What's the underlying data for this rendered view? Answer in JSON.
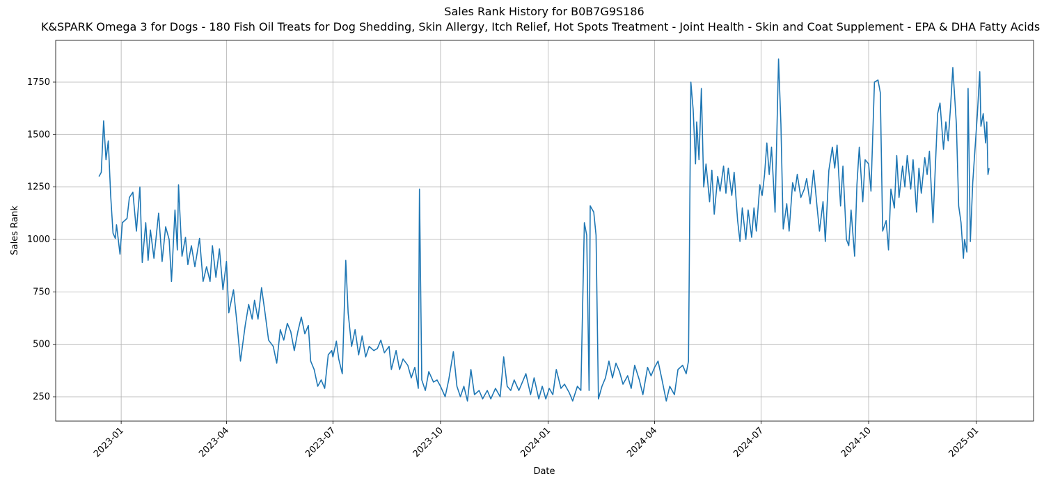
{
  "chart_data": {
    "type": "line",
    "title": "Sales Rank History for B0B7G9S186",
    "subtitle": "K&SPARK Omega 3 for Dogs - 180 Fish Oil Treats for Dog Shedding, Skin Allergy, Itch Relief, Hot Spots Treatment - Joint Health - Skin and Coat Supplement - EPA & DHA Fatty Acids -",
    "x_label": "Date",
    "y_label": "Sales Rank",
    "color": "#1f77b4",
    "grid": true,
    "xlim": [
      "2022-11-06",
      "2025-02-19"
    ],
    "xticks": [
      "2023-01",
      "2023-04",
      "2023-07",
      "2023-10",
      "2024-01",
      "2024-04",
      "2024-07",
      "2024-10",
      "2025-01"
    ],
    "ylim": [
      134,
      1949
    ],
    "yticks": [
      250,
      500,
      750,
      1000,
      1250,
      1500,
      1750
    ],
    "x": [
      "2022-12-13",
      "2022-12-15",
      "2022-12-17",
      "2022-12-19",
      "2022-12-21",
      "2022-12-23",
      "2022-12-25",
      "2022-12-27",
      "2022-12-28",
      "2022-12-31",
      "2023-01-02",
      "2023-01-06",
      "2023-01-08",
      "2023-01-11",
      "2023-01-14",
      "2023-01-17",
      "2023-01-19",
      "2023-01-22",
      "2023-01-24",
      "2023-01-26",
      "2023-01-29",
      "2023-02-02",
      "2023-02-05",
      "2023-02-08",
      "2023-02-11",
      "2023-02-13",
      "2023-02-16",
      "2023-02-18",
      "2023-02-19",
      "2023-02-22",
      "2023-02-25",
      "2023-02-27",
      "2023-03-02",
      "2023-03-05",
      "2023-03-09",
      "2023-03-12",
      "2023-03-15",
      "2023-03-18",
      "2023-03-20",
      "2023-03-23",
      "2023-03-26",
      "2023-03-29",
      "2023-04-01",
      "2023-04-03",
      "2023-04-07",
      "2023-04-10",
      "2023-04-13",
      "2023-04-17",
      "2023-04-20",
      "2023-04-23",
      "2023-04-25",
      "2023-04-28",
      "2023-05-01",
      "2023-05-04",
      "2023-05-07",
      "2023-05-11",
      "2023-05-14",
      "2023-05-17",
      "2023-05-20",
      "2023-05-23",
      "2023-05-26",
      "2023-05-29",
      "2023-06-01",
      "2023-06-04",
      "2023-06-07",
      "2023-06-10",
      "2023-06-12",
      "2023-06-15",
      "2023-06-18",
      "2023-06-21",
      "2023-06-24",
      "2023-06-27",
      "2023-06-30",
      "2023-07-01",
      "2023-07-04",
      "2023-07-06",
      "2023-07-09",
      "2023-07-12",
      "2023-07-14",
      "2023-07-17",
      "2023-07-20",
      "2023-07-23",
      "2023-07-26",
      "2023-07-29",
      "2023-08-01",
      "2023-08-05",
      "2023-08-08",
      "2023-08-11",
      "2023-08-14",
      "2023-08-18",
      "2023-08-20",
      "2023-08-24",
      "2023-08-27",
      "2023-08-30",
      "2023-09-03",
      "2023-09-06",
      "2023-09-09",
      "2023-09-12",
      "2023-09-13",
      "2023-09-15",
      "2023-09-18",
      "2023-09-21",
      "2023-09-25",
      "2023-09-28",
      "2023-10-01",
      "2023-10-05",
      "2023-10-08",
      "2023-10-12",
      "2023-10-15",
      "2023-10-18",
      "2023-10-21",
      "2023-10-24",
      "2023-10-27",
      "2023-10-30",
      "2023-11-03",
      "2023-11-06",
      "2023-11-10",
      "2023-11-13",
      "2023-11-17",
      "2023-11-21",
      "2023-11-24",
      "2023-11-27",
      "2023-11-30",
      "2023-12-03",
      "2023-12-07",
      "2023-12-10",
      "2023-12-13",
      "2023-12-17",
      "2023-12-20",
      "2023-12-24",
      "2023-12-27",
      "2023-12-30",
      "2024-01-02",
      "2024-01-05",
      "2024-01-08",
      "2024-01-12",
      "2024-01-15",
      "2024-01-19",
      "2024-01-22",
      "2024-01-26",
      "2024-01-29",
      "2024-02-01",
      "2024-02-03",
      "2024-02-05",
      "2024-02-06",
      "2024-02-09",
      "2024-02-11",
      "2024-02-13",
      "2024-02-16",
      "2024-02-19",
      "2024-02-22",
      "2024-02-25",
      "2024-02-28",
      "2024-03-02",
      "2024-03-05",
      "2024-03-09",
      "2024-03-12",
      "2024-03-15",
      "2024-03-19",
      "2024-03-22",
      "2024-03-26",
      "2024-03-29",
      "2024-04-01",
      "2024-04-04",
      "2024-04-07",
      "2024-04-11",
      "2024-04-14",
      "2024-04-18",
      "2024-04-21",
      "2024-04-25",
      "2024-04-28",
      "2024-04-30",
      "2024-05-02",
      "2024-05-04",
      "2024-05-06",
      "2024-05-07",
      "2024-05-09",
      "2024-05-11",
      "2024-05-13",
      "2024-05-15",
      "2024-05-18",
      "2024-05-20",
      "2024-05-22",
      "2024-05-25",
      "2024-05-27",
      "2024-05-30",
      "2024-06-01",
      "2024-06-03",
      "2024-06-06",
      "2024-06-08",
      "2024-06-11",
      "2024-06-13",
      "2024-06-15",
      "2024-06-18",
      "2024-06-20",
      "2024-06-23",
      "2024-06-25",
      "2024-06-27",
      "2024-06-30",
      "2024-07-02",
      "2024-07-04",
      "2024-07-06",
      "2024-07-08",
      "2024-07-10",
      "2024-07-13",
      "2024-07-16",
      "2024-07-18",
      "2024-07-20",
      "2024-07-23",
      "2024-07-25",
      "2024-07-28",
      "2024-07-30",
      "2024-08-01",
      "2024-08-04",
      "2024-08-07",
      "2024-08-09",
      "2024-08-12",
      "2024-08-15",
      "2024-08-18",
      "2024-08-20",
      "2024-08-23",
      "2024-08-25",
      "2024-08-28",
      "2024-08-31",
      "2024-09-02",
      "2024-09-04",
      "2024-09-07",
      "2024-09-09",
      "2024-09-12",
      "2024-09-14",
      "2024-09-16",
      "2024-09-19",
      "2024-09-21",
      "2024-09-23",
      "2024-09-26",
      "2024-09-28",
      "2024-10-01",
      "2024-10-03",
      "2024-10-06",
      "2024-10-09",
      "2024-10-11",
      "2024-10-13",
      "2024-10-16",
      "2024-10-18",
      "2024-10-20",
      "2024-10-23",
      "2024-10-25",
      "2024-10-27",
      "2024-10-30",
      "2024-11-01",
      "2024-11-03",
      "2024-11-06",
      "2024-11-08",
      "2024-11-11",
      "2024-11-13",
      "2024-11-15",
      "2024-11-18",
      "2024-11-20",
      "2024-11-22",
      "2024-11-25",
      "2024-11-27",
      "2024-11-29",
      "2024-12-01",
      "2024-12-04",
      "2024-12-06",
      "2024-12-08",
      "2024-12-10",
      "2024-12-12",
      "2024-12-15",
      "2024-12-17",
      "2024-12-19",
      "2024-12-21",
      "2024-12-22",
      "2024-12-24",
      "2024-12-25",
      "2024-12-27",
      "2024-12-29",
      "2025-01-02",
      "2025-01-04",
      "2025-01-05",
      "2025-01-07",
      "2025-01-09",
      "2025-01-10",
      "2025-01-11",
      "2025-01-12"
    ],
    "values": [
      1300,
      1320,
      1565,
      1380,
      1470,
      1210,
      1030,
      1005,
      1070,
      930,
      1080,
      1100,
      1200,
      1225,
      1040,
      1250,
      890,
      1080,
      900,
      1045,
      910,
      1125,
      895,
      1060,
      1000,
      800,
      1140,
      950,
      1260,
      920,
      1010,
      880,
      970,
      870,
      1005,
      800,
      870,
      800,
      970,
      820,
      955,
      760,
      895,
      650,
      760,
      600,
      420,
      590,
      690,
      620,
      710,
      620,
      770,
      650,
      520,
      490,
      410,
      570,
      520,
      600,
      560,
      470,
      560,
      630,
      550,
      590,
      420,
      380,
      300,
      330,
      290,
      450,
      470,
      440,
      515,
      430,
      360,
      900,
      650,
      490,
      570,
      450,
      540,
      440,
      490,
      470,
      480,
      520,
      460,
      490,
      380,
      470,
      380,
      430,
      400,
      340,
      390,
      290,
      1240,
      330,
      280,
      370,
      320,
      330,
      300,
      250,
      330,
      465,
      300,
      250,
      300,
      230,
      380,
      260,
      280,
      240,
      280,
      240,
      290,
      250,
      440,
      300,
      280,
      330,
      280,
      320,
      360,
      260,
      340,
      240,
      300,
      240,
      290,
      260,
      380,
      290,
      310,
      270,
      230,
      300,
      280,
      1080,
      1020,
      280,
      1160,
      1130,
      1020,
      240,
      300,
      340,
      420,
      340,
      410,
      370,
      310,
      350,
      290,
      400,
      330,
      260,
      390,
      350,
      390,
      420,
      340,
      230,
      300,
      260,
      380,
      400,
      360,
      420,
      1750,
      1620,
      1360,
      1560,
      1380,
      1720,
      1250,
      1360,
      1180,
      1330,
      1120,
      1300,
      1230,
      1350,
      1220,
      1340,
      1210,
      1320,
      1090,
      990,
      1150,
      1000,
      1140,
      1010,
      1150,
      1040,
      1260,
      1210,
      1310,
      1460,
      1310,
      1440,
      1130,
      1860,
      1550,
      1050,
      1170,
      1040,
      1270,
      1230,
      1310,
      1200,
      1240,
      1290,
      1170,
      1330,
      1150,
      1040,
      1180,
      990,
      1330,
      1440,
      1340,
      1450,
      1160,
      1350,
      1000,
      970,
      1140,
      920,
      1260,
      1440,
      1180,
      1380,
      1360,
      1230,
      1750,
      1760,
      1700,
      1040,
      1090,
      950,
      1240,
      1150,
      1400,
      1200,
      1350,
      1250,
      1400,
      1240,
      1380,
      1130,
      1340,
      1220,
      1390,
      1310,
      1420,
      1080,
      1340,
      1600,
      1650,
      1430,
      1560,
      1470,
      1630,
      1820,
      1550,
      1160,
      1080,
      910,
      1000,
      940,
      1720,
      990,
      1270,
      1600,
      1800,
      1540,
      1600,
      1460,
      1560,
      1310,
      1340
    ]
  }
}
